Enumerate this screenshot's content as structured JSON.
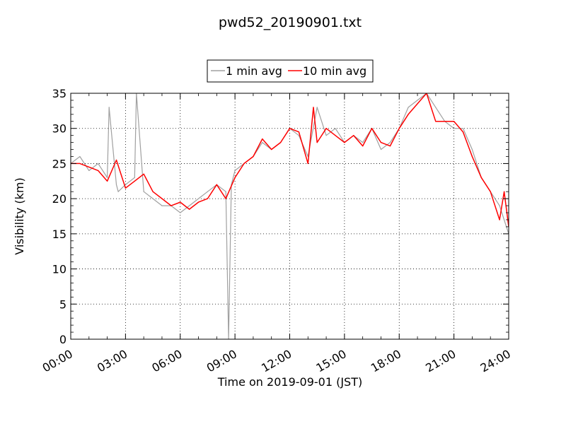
{
  "chart_data": {
    "type": "line",
    "title": "pwd52_20190901.txt",
    "xlabel": "Time on 2019-09-01 (JST)",
    "ylabel": "Visibility (km)",
    "xlim_hours": [
      0,
      24
    ],
    "ylim": [
      0,
      35
    ],
    "x_ticks": [
      {
        "hour": 0,
        "label": "00:00"
      },
      {
        "hour": 3,
        "label": "03:00"
      },
      {
        "hour": 6,
        "label": "06:00"
      },
      {
        "hour": 9,
        "label": "09:00"
      },
      {
        "hour": 12,
        "label": "12:00"
      },
      {
        "hour": 15,
        "label": "15:00"
      },
      {
        "hour": 18,
        "label": "18:00"
      },
      {
        "hour": 21,
        "label": "21:00"
      },
      {
        "hour": 24,
        "label": "24:00"
      }
    ],
    "y_ticks": [
      0,
      5,
      10,
      15,
      20,
      25,
      30,
      35
    ],
    "grid": true,
    "legend_position": "top-center-outside",
    "series": [
      {
        "name": "1 min avg",
        "color": "#a0a0a0",
        "x_hours": [
          0,
          0.5,
          1.0,
          1.5,
          2.0,
          2.1,
          2.5,
          2.6,
          3.0,
          3.5,
          3.6,
          4.0,
          4.5,
          5.0,
          5.5,
          6.0,
          6.5,
          7.0,
          7.5,
          8.0,
          8.5,
          8.65,
          8.8,
          9.0,
          9.5,
          10.0,
          10.5,
          11.0,
          11.5,
          12.0,
          12.5,
          13.0,
          13.5,
          14.0,
          14.5,
          15.0,
          15.5,
          16.0,
          16.5,
          17.0,
          17.5,
          18.0,
          18.5,
          19.0,
          19.5,
          20.0,
          20.5,
          21.0,
          21.5,
          22.0,
          22.5,
          23.0,
          23.5,
          24.0
        ],
        "values": [
          25,
          26,
          24,
          25,
          23,
          33,
          22,
          21,
          22,
          23,
          35,
          21,
          20,
          19,
          19,
          18,
          19,
          20,
          21,
          22,
          21,
          0,
          22,
          24,
          25,
          26,
          28,
          27,
          28,
          30,
          29,
          26,
          33,
          29,
          30,
          28,
          29,
          28,
          30,
          27,
          28,
          30,
          33,
          34,
          35,
          33,
          31,
          30,
          30,
          27,
          23,
          21,
          19,
          15
        ]
      },
      {
        "name": "10 min avg",
        "color": "#ff0000",
        "x_hours": [
          0,
          0.5,
          1.0,
          1.5,
          2.0,
          2.5,
          3.0,
          3.5,
          4.0,
          4.5,
          5.0,
          5.5,
          6.0,
          6.5,
          7.0,
          7.5,
          8.0,
          8.5,
          9.0,
          9.5,
          10.0,
          10.5,
          11.0,
          11.5,
          12.0,
          12.5,
          13.0,
          13.3,
          13.5,
          14.0,
          14.5,
          15.0,
          15.5,
          16.0,
          16.5,
          17.0,
          17.5,
          18.0,
          18.5,
          19.0,
          19.5,
          20.0,
          20.5,
          21.0,
          21.5,
          22.0,
          22.5,
          23.0,
          23.5,
          23.75,
          24.0
        ],
        "values": [
          25,
          25,
          24.5,
          24,
          22.5,
          25.5,
          21.5,
          22.5,
          23.5,
          21,
          20,
          19,
          19.5,
          18.5,
          19.5,
          20,
          22,
          20,
          23,
          25,
          26,
          28.5,
          27,
          28,
          30,
          29.5,
          25,
          33,
          28,
          30,
          29,
          28,
          29,
          27.5,
          30,
          28,
          27.5,
          30,
          32,
          33.5,
          35,
          31,
          31,
          31,
          29.5,
          26,
          23,
          21,
          17,
          21,
          16
        ]
      }
    ]
  }
}
